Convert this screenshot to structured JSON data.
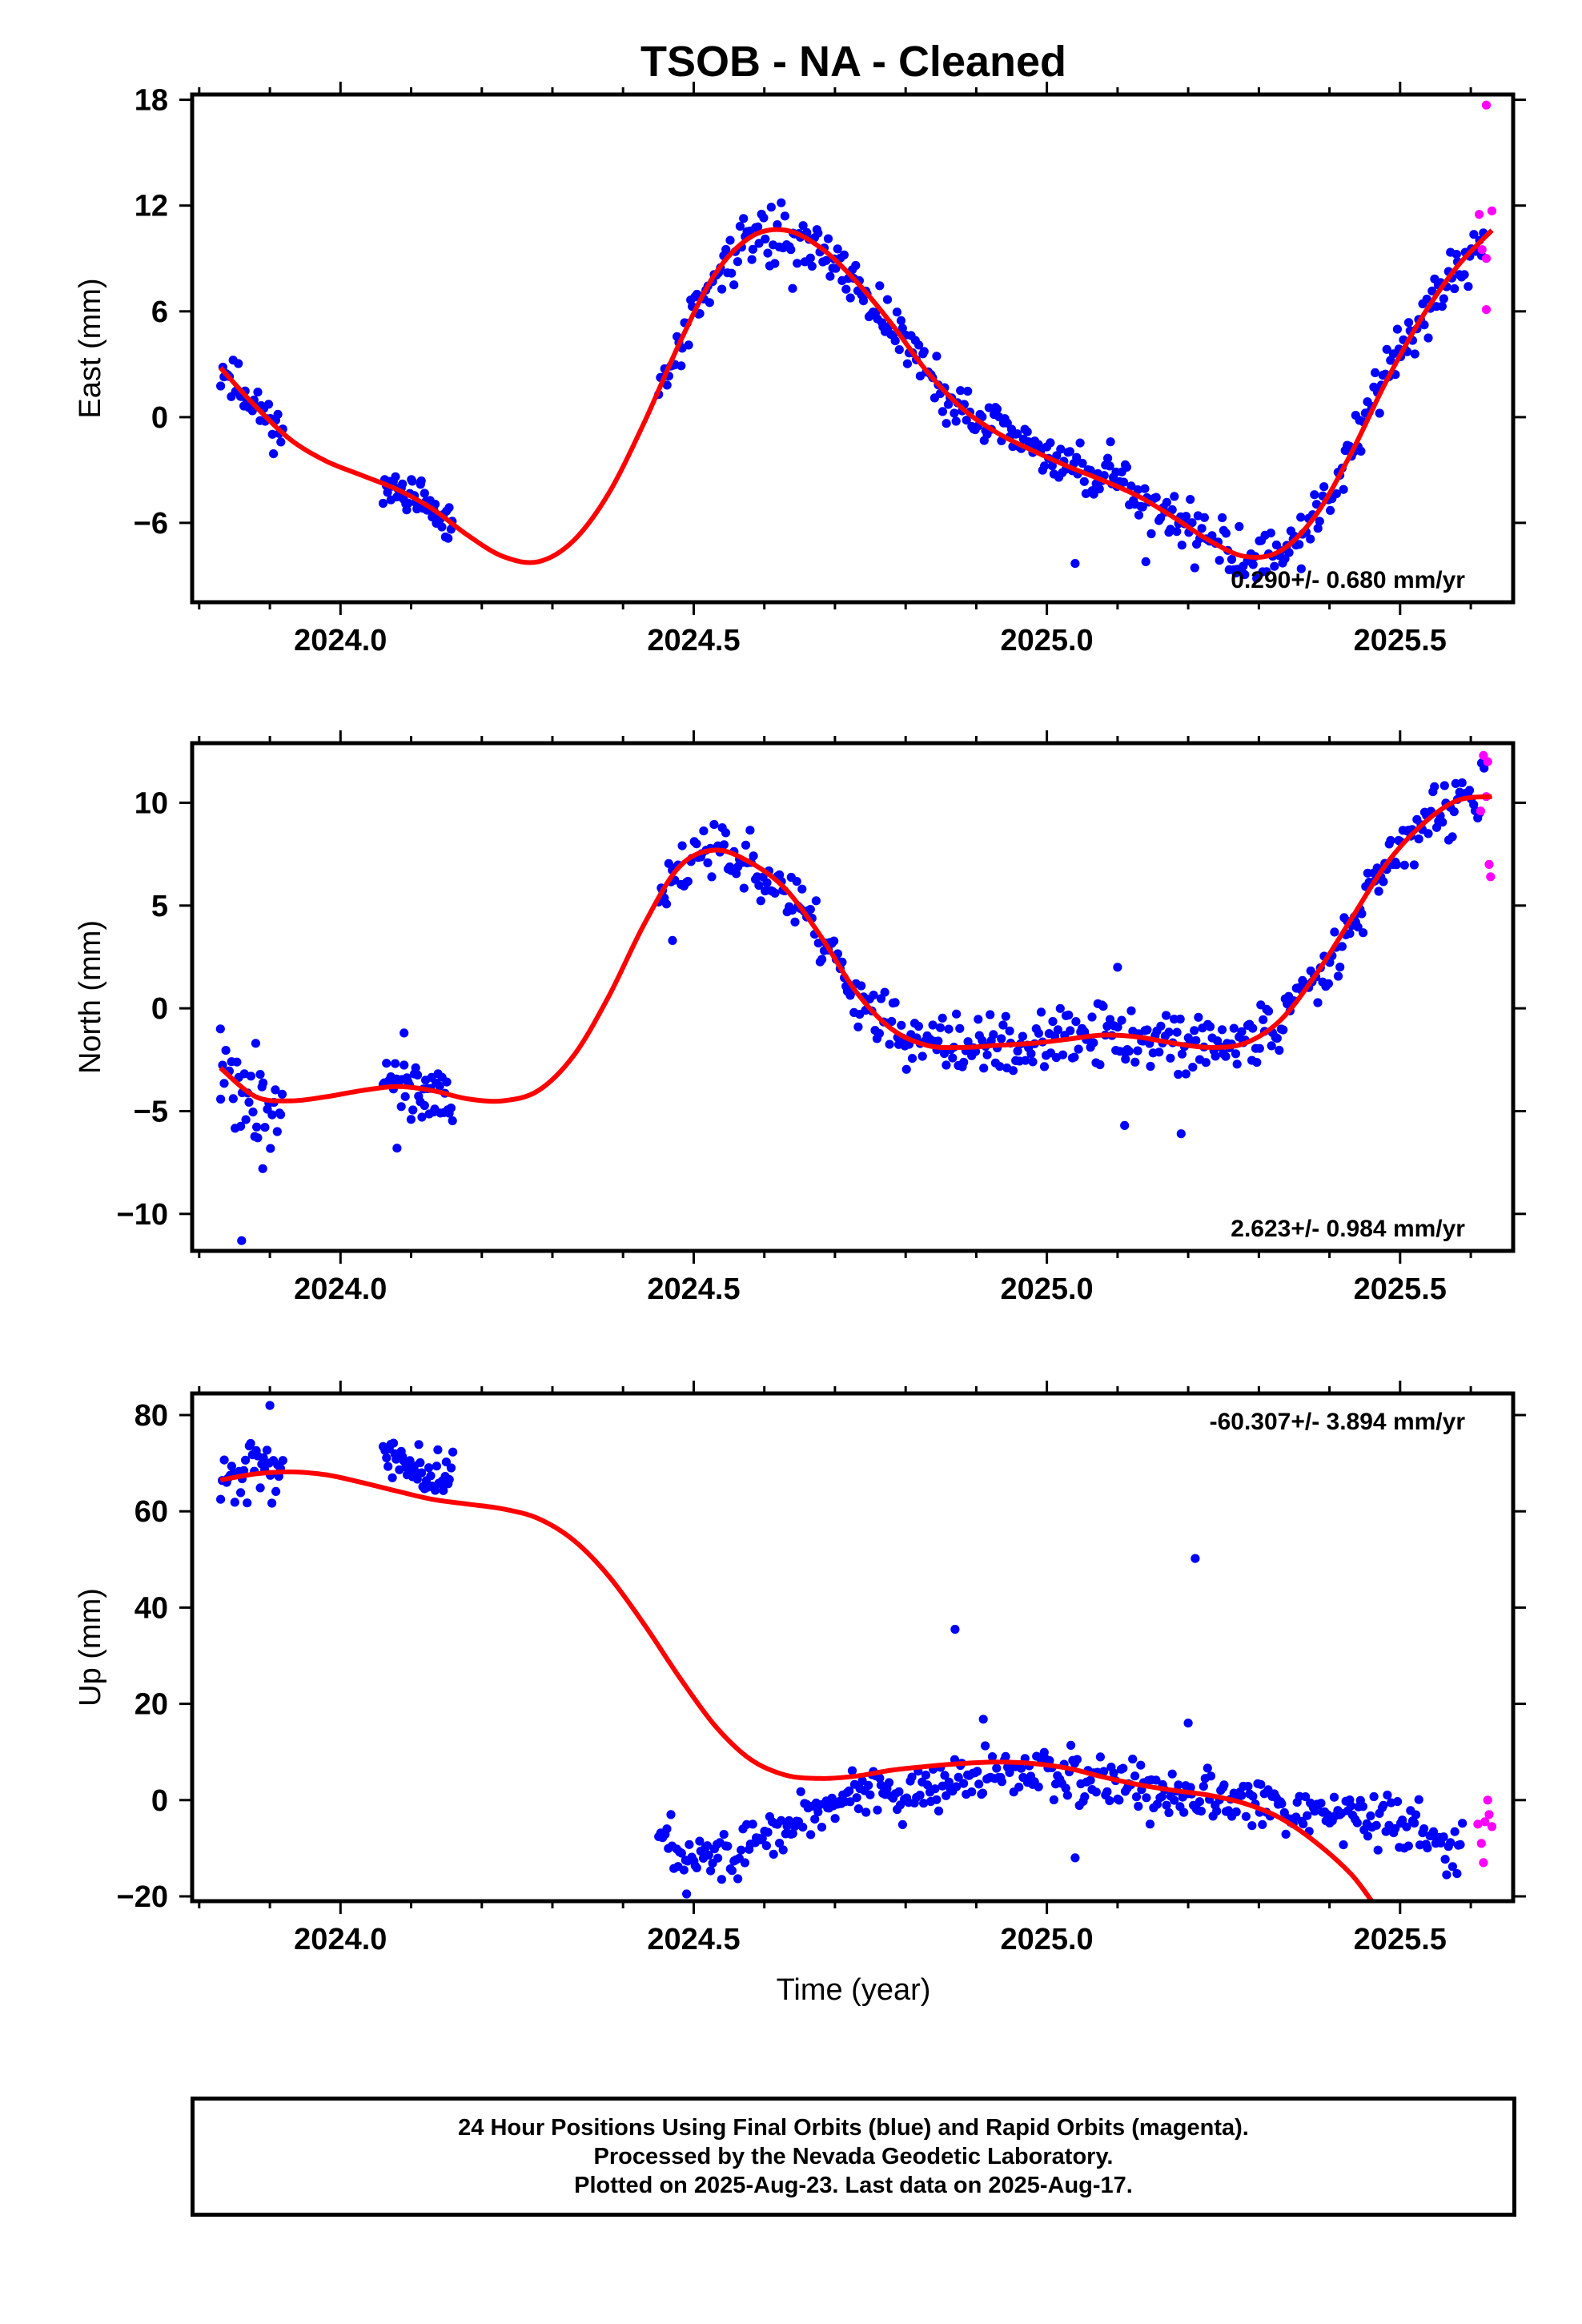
{
  "title": "TSOB  - NA - Cleaned",
  "xlabel": "Time (year)",
  "footer": {
    "line1": "24 Hour Positions Using Final Orbits (blue) and Rapid Orbits (magenta).",
    "line2": "Processed by the Nevada Geodetic Laboratory.",
    "line3": "Plotted on 2025-Aug-23. Last data on 2025-Aug-17."
  },
  "colors": {
    "final": "#0000ff",
    "rapid": "#ff00ff",
    "model": "#ff0000",
    "frame": "#000000"
  },
  "chart_data": [
    {
      "type": "scatter",
      "title": "",
      "xlabel": "",
      "ylabel": "East (mm)",
      "xlim": [
        2023.79,
        2025.66
      ],
      "ylim": [
        -10.5,
        18.3
      ],
      "xticks": [
        2024.0,
        2024.5,
        2025.0,
        2025.5
      ],
      "xtick_labels": [
        "2024.0",
        "2024.5",
        "2025.0",
        "2025.5"
      ],
      "yticks": [
        -6,
        0,
        6,
        12,
        18
      ],
      "ytick_labels": [
        "−6",
        "0",
        "6",
        "12",
        "18"
      ],
      "rate_label": "0.290+/- 0.680 mm/yr",
      "rate_position": "bottom-right",
      "grid": false,
      "model": {
        "x": [
          2023.83,
          2023.88,
          2023.93,
          2023.98,
          2024.03,
          2024.08,
          2024.13,
          2024.18,
          2024.23,
          2024.28,
          2024.33,
          2024.38,
          2024.43,
          2024.48,
          2024.53,
          2024.58,
          2024.63,
          2024.68,
          2024.73,
          2024.78,
          2024.83,
          2024.88,
          2024.93,
          2024.98,
          2025.03,
          2025.08,
          2025.13,
          2025.18,
          2025.23,
          2025.28,
          2025.33,
          2025.38,
          2025.43,
          2025.48,
          2025.53,
          2025.58,
          2025.63
        ],
        "y": [
          2.8,
          0.6,
          -1.3,
          -2.5,
          -3.3,
          -4.1,
          -5.2,
          -6.7,
          -7.9,
          -8.2,
          -7.0,
          -4.3,
          -0.3,
          4.2,
          8.1,
          10.2,
          10.6,
          9.6,
          7.7,
          5.3,
          2.6,
          0.5,
          -0.9,
          -1.9,
          -2.8,
          -3.6,
          -4.5,
          -5.7,
          -7.0,
          -7.9,
          -7.6,
          -5.6,
          -2.1,
          2.0,
          5.6,
          8.5,
          10.6
        ]
      },
      "segments": [
        {
          "start": 2023.83,
          "end": 2023.92,
          "count": 36,
          "amp": 0.8,
          "seed": 11
        },
        {
          "start": 2024.06,
          "end": 2024.16,
          "count": 48,
          "amp": 0.7,
          "seed": 12
        },
        {
          "start": 2024.45,
          "end": 2025.62,
          "count": 420,
          "amp": 0.9,
          "seed": 13
        }
      ],
      "outliers": [
        {
          "x": 2025.09,
          "y": -1.4
        },
        {
          "x": 2025.04,
          "y": -8.3
        },
        {
          "x": 2025.14,
          "y": -8.2
        },
        {
          "x": 2024.64,
          "y": 7.3
        },
        {
          "x": 2025.36,
          "y": -8.6
        }
      ],
      "rapid": [
        {
          "x": 2025.622,
          "y": 17.7
        },
        {
          "x": 2025.622,
          "y": 9.0
        },
        {
          "x": 2025.622,
          "y": 6.1
        },
        {
          "x": 2025.63,
          "y": 11.7
        },
        {
          "x": 2025.612,
          "y": 11.5
        },
        {
          "x": 2025.616,
          "y": 9.5
        }
      ]
    },
    {
      "type": "scatter",
      "title": "",
      "xlabel": "",
      "ylabel": "North (mm)",
      "xlim": [
        2023.79,
        2025.66
      ],
      "ylim": [
        -11.8,
        12.9
      ],
      "xticks": [
        2024.0,
        2024.5,
        2025.0,
        2025.5
      ],
      "xtick_labels": [
        "2024.0",
        "2024.5",
        "2025.0",
        "2025.5"
      ],
      "yticks": [
        -10,
        -5,
        0,
        5,
        10
      ],
      "ytick_labels": [
        "−10",
        "−5",
        "0",
        "5",
        "10"
      ],
      "rate_label": "2.623+/- 0.984 mm/yr",
      "rate_position": "bottom-right",
      "grid": false,
      "model": {
        "x": [
          2023.83,
          2023.88,
          2023.93,
          2023.98,
          2024.03,
          2024.08,
          2024.13,
          2024.18,
          2024.23,
          2024.28,
          2024.33,
          2024.38,
          2024.43,
          2024.48,
          2024.53,
          2024.58,
          2024.63,
          2024.68,
          2024.73,
          2024.78,
          2024.83,
          2024.88,
          2024.93,
          2024.98,
          2025.03,
          2025.08,
          2025.13,
          2025.18,
          2025.23,
          2025.28,
          2025.33,
          2025.38,
          2025.43,
          2025.48,
          2025.53,
          2025.58,
          2025.63
        ],
        "y": [
          -2.9,
          -4.3,
          -4.5,
          -4.3,
          -4.0,
          -3.8,
          -4.0,
          -4.4,
          -4.5,
          -4.0,
          -2.3,
          0.6,
          4.1,
          6.9,
          7.7,
          7.1,
          5.8,
          3.5,
          0.8,
          -1.0,
          -1.8,
          -1.9,
          -1.8,
          -1.7,
          -1.5,
          -1.3,
          -1.4,
          -1.7,
          -1.9,
          -1.7,
          -0.6,
          1.6,
          4.3,
          7.0,
          8.9,
          10.1,
          10.3
        ]
      },
      "segments": [
        {
          "start": 2023.83,
          "end": 2023.92,
          "count": 36,
          "amp": 1.4,
          "seed": 21
        },
        {
          "start": 2024.06,
          "end": 2024.16,
          "count": 48,
          "amp": 0.8,
          "seed": 22
        },
        {
          "start": 2024.45,
          "end": 2025.62,
          "count": 420,
          "amp": 0.9,
          "seed": 23
        }
      ],
      "outliers": [
        {
          "x": 2023.86,
          "y": -11.3
        },
        {
          "x": 2023.89,
          "y": -7.8
        },
        {
          "x": 2023.88,
          "y": -1.7
        },
        {
          "x": 2023.83,
          "y": -1.0
        },
        {
          "x": 2024.08,
          "y": -6.8
        },
        {
          "x": 2024.09,
          "y": -1.2
        },
        {
          "x": 2025.1,
          "y": 2.0
        },
        {
          "x": 2025.11,
          "y": -5.7
        },
        {
          "x": 2025.19,
          "y": -6.1
        },
        {
          "x": 2024.47,
          "y": 3.3
        }
      ],
      "rapid": [
        {
          "x": 2025.618,
          "y": 12.3
        },
        {
          "x": 2025.624,
          "y": 12.0
        },
        {
          "x": 2025.622,
          "y": 10.3
        },
        {
          "x": 2025.614,
          "y": 9.6
        },
        {
          "x": 2025.626,
          "y": 7.0
        },
        {
          "x": 2025.628,
          "y": 6.4
        }
      ]
    },
    {
      "type": "scatter",
      "title": "",
      "xlabel": "Time (year)",
      "ylabel": "Up (mm)",
      "xlim": [
        2023.79,
        2025.66
      ],
      "ylim": [
        -21.0,
        84.5
      ],
      "xticks": [
        2024.0,
        2024.5,
        2025.0,
        2025.5
      ],
      "xtick_labels": [
        "2024.0",
        "2024.5",
        "2025.0",
        "2025.5"
      ],
      "yticks": [
        -20,
        0,
        20,
        40,
        60,
        80
      ],
      "ytick_labels": [
        "−20",
        "0",
        "20",
        "40",
        "60",
        "80"
      ],
      "rate_label": "-60.307+/- 3.894 mm/yr",
      "rate_position": "top-right",
      "grid": false,
      "model": {
        "x": [
          2023.83,
          2023.88,
          2023.93,
          2023.98,
          2024.03,
          2024.08,
          2024.13,
          2024.18,
          2024.23,
          2024.28,
          2024.33,
          2024.38,
          2024.43,
          2024.48,
          2024.53,
          2024.58,
          2024.63,
          2024.68,
          2024.73,
          2024.78,
          2024.83,
          2024.88,
          2024.93,
          2024.98,
          2025.03,
          2025.08,
          2025.13,
          2025.18,
          2025.23,
          2025.28,
          2025.33,
          2025.38,
          2025.43,
          2025.46
        ],
        "y": [
          66.5,
          67.8,
          68.2,
          67.6,
          66.0,
          64.2,
          62.5,
          61.5,
          60.5,
          58.5,
          54.0,
          46.5,
          36.5,
          25.5,
          15.5,
          8.5,
          5.2,
          4.5,
          5.0,
          6.2,
          7.0,
          7.6,
          7.9,
          7.6,
          6.6,
          4.8,
          3.2,
          2.0,
          1.0,
          -0.7,
          -3.7,
          -8.7,
          -15.3,
          -21.0
        ]
      },
      "segments": [
        {
          "start": 2023.83,
          "end": 2023.92,
          "count": 36,
          "amp": 4.0,
          "seed": 31,
          "trend": [
            [
              2023.83,
              66.0
            ],
            [
              2023.92,
              70.0
            ]
          ]
        },
        {
          "start": 2024.06,
          "end": 2024.16,
          "count": 48,
          "amp": 3.5,
          "seed": 32,
          "trend": [
            [
              2024.06,
              72.0
            ],
            [
              2024.16,
              67.0
            ]
          ]
        },
        {
          "start": 2024.45,
          "end": 2025.59,
          "count": 420,
          "amp": 3.5,
          "seed": 33,
          "trend": [
            [
              2024.45,
              -8.0
            ],
            [
              2024.55,
              -12.5
            ],
            [
              2024.62,
              -6.0
            ],
            [
              2024.72,
              0.0
            ],
            [
              2024.85,
              3.5
            ],
            [
              2024.95,
              6.0
            ],
            [
              2025.05,
              4.0
            ],
            [
              2025.15,
              2.0
            ],
            [
              2025.25,
              1.0
            ],
            [
              2025.32,
              -1.0
            ],
            [
              2025.4,
              -3.0
            ],
            [
              2025.5,
              -5.0
            ],
            [
              2025.59,
              -9.0
            ]
          ]
        }
      ],
      "outliers": [
        {
          "x": 2024.87,
          "y": 35.5
        },
        {
          "x": 2025.21,
          "y": 50.2
        },
        {
          "x": 2023.9,
          "y": 82.0
        },
        {
          "x": 2024.49,
          "y": -19.5
        },
        {
          "x": 2025.04,
          "y": -12.0
        },
        {
          "x": 2025.2,
          "y": 16.0
        },
        {
          "x": 2024.91,
          "y": 16.8
        }
      ],
      "rapid": [
        {
          "x": 2025.61,
          "y": -5.0
        },
        {
          "x": 2025.615,
          "y": -9.0
        },
        {
          "x": 2025.618,
          "y": -13.0
        },
        {
          "x": 2025.62,
          "y": -4.5
        },
        {
          "x": 2025.624,
          "y": 0.0
        },
        {
          "x": 2025.626,
          "y": -3.0
        },
        {
          "x": 2025.63,
          "y": -5.5
        }
      ]
    }
  ]
}
